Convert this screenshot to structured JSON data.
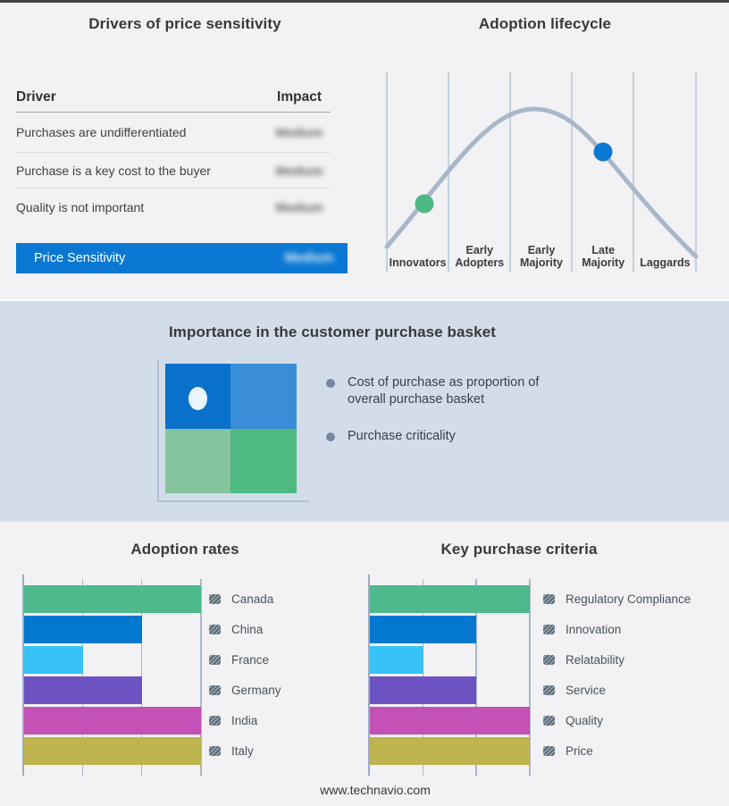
{
  "page": {
    "footer": "www.technavio.com"
  },
  "colors": {
    "page_bg": "#f2f2f4",
    "band_bg": "#d2dde9",
    "accent_blue": "#0a78d2",
    "curve": "#a9b7cb",
    "grid": "#b9c4d3",
    "quad_top_left": "#0a72cc",
    "quad_top_right": "#3a8ed8",
    "quad_bottom_left": "#86c59e",
    "quad_bottom_right": "#4eba82",
    "marker_green": "#4db886",
    "marker_blue": "#0b79d4"
  },
  "drivers": {
    "title": "Drivers of price sensitivity",
    "columns": {
      "driver": "Driver",
      "impact": "Impact"
    },
    "rows": [
      {
        "driver": "Purchases are undifferentiated",
        "impact": "Medium",
        "impact_blurred": true
      },
      {
        "driver": "Purchase is a key cost to the buyer",
        "impact": "Medium",
        "impact_blurred": true
      },
      {
        "driver": "Quality is not important",
        "impact": "Medium",
        "impact_blurred": true
      }
    ],
    "highlight_row": {
      "driver": "Price Sensitivity",
      "impact": "Medium",
      "impact_blurred": true,
      "background": "#0a78d2"
    }
  },
  "lifecycle": {
    "title": "Adoption lifecycle",
    "stages": [
      "Innovators",
      "Early Adopters",
      "Early Majority",
      "Late Majority",
      "Laggards"
    ],
    "markers": [
      {
        "stage": "Innovators",
        "color": "#4db886"
      },
      {
        "stage": "Late Majority",
        "color": "#0b79d4"
      }
    ]
  },
  "basket": {
    "title": "Importance in the customer purchase basket",
    "bullets": [
      "Cost of purchase as proportion of overall purchase basket",
      "Purchase criticality"
    ]
  },
  "chart_data": [
    {
      "name": "adoption_lifecycle",
      "type": "line",
      "title": "Adoption lifecycle",
      "shape": "bell curve",
      "x_categories": [
        "Innovators",
        "Early Adopters",
        "Early Majority",
        "Late Majority",
        "Laggards"
      ],
      "peak_at": "Early Majority",
      "markers": [
        {
          "x": "Innovators",
          "color": "#4db886"
        },
        {
          "x": "Late Majority",
          "color": "#0b79d4"
        }
      ],
      "grid": "vertical category separators, no axis labels"
    },
    {
      "name": "adoption_rates",
      "type": "bar",
      "title": "Adoption rates",
      "orientation": "horizontal",
      "categories": [
        "Canada",
        "China",
        "France",
        "Germany",
        "India",
        "Italy"
      ],
      "values": [
        3,
        2,
        1,
        2,
        3,
        3
      ],
      "xlim": [
        0,
        3
      ],
      "gridlines": [
        1,
        2,
        3
      ],
      "tick_labels": [],
      "colors": [
        "#4eb98c",
        "#0478ce",
        "#38c3f8",
        "#6c53c1",
        "#c351b6",
        "#bdb44e"
      ],
      "legend_position": "right",
      "legend_swatch": "gray-hatched"
    },
    {
      "name": "key_purchase_criteria",
      "type": "bar",
      "title": "Key purchase criteria",
      "orientation": "horizontal",
      "categories": [
        "Regulatory Compliance",
        "Innovation",
        "Relatability",
        "Service",
        "Quality",
        "Price"
      ],
      "values": [
        3,
        2,
        1,
        2,
        3,
        3
      ],
      "xlim": [
        0,
        3
      ],
      "gridlines": [
        1,
        2,
        3
      ],
      "tick_labels": [],
      "colors": [
        "#4eb98c",
        "#0478ce",
        "#38c3f8",
        "#6c53c1",
        "#c351b6",
        "#bdb44e"
      ],
      "legend_position": "right",
      "legend_swatch": "gray-hatched"
    }
  ]
}
